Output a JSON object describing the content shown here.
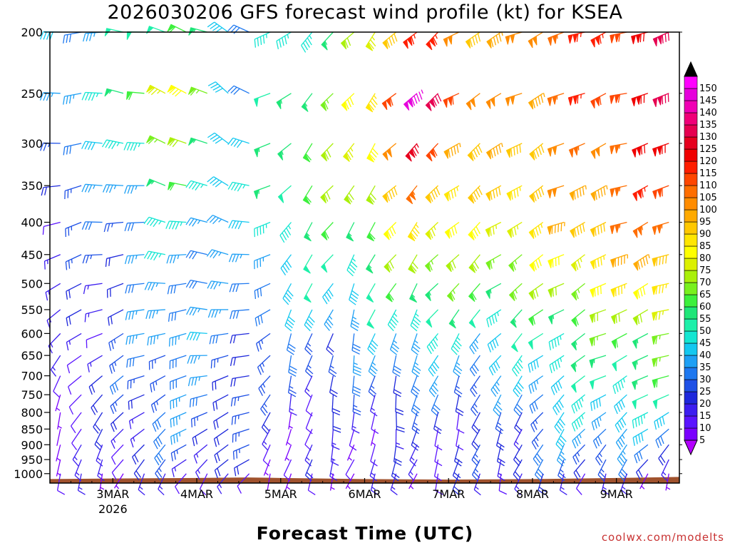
{
  "chart_data": {
    "type": "wind-barb-profile",
    "title": "2026030206 GFS forecast wind profile (kt) for KSEA",
    "xlabel": "Forecast Time (UTC)",
    "ylabel": "",
    "y_axis": {
      "ticks": [
        200,
        250,
        300,
        350,
        400,
        450,
        500,
        550,
        600,
        650,
        700,
        750,
        800,
        850,
        900,
        950,
        1000
      ],
      "range": [
        200,
        1035
      ],
      "scale": "log-pressure-inverted",
      "units": "hPa"
    },
    "x_axis": {
      "tick_labels": [
        "3MAR",
        "4MAR",
        "5MAR",
        "6MAR",
        "7MAR",
        "8MAR",
        "9MAR"
      ],
      "tick_days": [
        3,
        4,
        5,
        6,
        7,
        8,
        9
      ],
      "sublabel": "2026",
      "range_days": [
        2.25,
        9.75
      ],
      "step_hours": 6
    },
    "colorbar": {
      "levels": [
        5,
        10,
        15,
        20,
        25,
        30,
        35,
        40,
        45,
        50,
        55,
        60,
        65,
        70,
        75,
        80,
        85,
        90,
        95,
        100,
        105,
        110,
        115,
        120,
        125,
        130,
        135,
        140,
        145,
        150
      ],
      "colors": [
        "#7a00ff",
        "#5a14ff",
        "#3c1ef0",
        "#1e28dc",
        "#1e50e6",
        "#1e78f0",
        "#1ea0f5",
        "#14c8f0",
        "#14e6d2",
        "#1ef0aa",
        "#1ee678",
        "#3cf03c",
        "#78f01e",
        "#aaf00a",
        "#dcf000",
        "#ffff00",
        "#ffe600",
        "#ffc800",
        "#ffaa00",
        "#ff8c00",
        "#ff6e00",
        "#ff4600",
        "#ff1e00",
        "#f00000",
        "#e6001e",
        "#e60050",
        "#f00078",
        "#f000b4",
        "#e600dc",
        "#ff00ff"
      ],
      "cap_top_color": "#000000",
      "cap_bottom_color": "#b400ff"
    },
    "levels_hpa": [
      200,
      250,
      300,
      350,
      400,
      450,
      500,
      550,
      600,
      650,
      700,
      750,
      800,
      850,
      900,
      950,
      1000
    ],
    "wind_keyframes": {
      "days": [
        2.25,
        3.0,
        3.75,
        4.6,
        5.0,
        6.0,
        6.6,
        7.5,
        8.5,
        9.75
      ],
      "speed_kt": {
        "200": [
          35,
          40,
          60,
          35,
          40,
          65,
          115,
          90,
          110,
          125
        ],
        "250": [
          35,
          45,
          85,
          30,
          50,
          75,
          140,
          95,
          105,
          125
        ],
        "300": [
          30,
          35,
          70,
          35,
          55,
          75,
          120,
          85,
          100,
          120
        ],
        "350": [
          25,
          30,
          55,
          40,
          55,
          70,
          100,
          85,
          95,
          115
        ],
        "400": [
          15,
          25,
          45,
          35,
          50,
          60,
          85,
          75,
          90,
          110
        ],
        "450": [
          15,
          25,
          40,
          30,
          45,
          50,
          70,
          65,
          80,
          100
        ],
        "500": [
          10,
          20,
          35,
          30,
          40,
          45,
          60,
          60,
          70,
          90
        ],
        "550": [
          10,
          20,
          35,
          30,
          35,
          40,
          50,
          50,
          60,
          80
        ],
        "600": [
          8,
          20,
          40,
          25,
          25,
          30,
          40,
          40,
          55,
          65
        ],
        "650": [
          8,
          20,
          35,
          25,
          25,
          30,
          35,
          35,
          50,
          60
        ],
        "700": [
          8,
          20,
          30,
          25,
          20,
          25,
          30,
          30,
          45,
          55
        ],
        "750": [
          6,
          20,
          30,
          25,
          15,
          20,
          25,
          25,
          40,
          45
        ],
        "800": [
          6,
          15,
          30,
          25,
          10,
          15,
          20,
          15,
          40,
          40
        ],
        "850": [
          6,
          15,
          30,
          20,
          10,
          10,
          15,
          15,
          35,
          35
        ],
        "900": [
          6,
          15,
          25,
          20,
          10,
          10,
          15,
          20,
          30,
          25
        ],
        "950": [
          6,
          15,
          20,
          15,
          10,
          15,
          15,
          20,
          25,
          20
        ],
        "1000": [
          5,
          10,
          15,
          10,
          5,
          10,
          10,
          15,
          15,
          10
        ]
      },
      "dir_deg": {
        "200": [
          260,
          270,
          290,
          300,
          230,
          220,
          230,
          240,
          250,
          255
        ],
        "250": [
          260,
          275,
          295,
          305,
          230,
          220,
          230,
          240,
          250,
          255
        ],
        "300": [
          260,
          275,
          290,
          300,
          225,
          215,
          225,
          235,
          245,
          255
        ],
        "350": [
          255,
          270,
          285,
          295,
          225,
          215,
          225,
          235,
          245,
          250
        ],
        "400": [
          250,
          265,
          280,
          290,
          220,
          210,
          220,
          235,
          245,
          250
        ],
        "450": [
          245,
          260,
          275,
          285,
          220,
          210,
          220,
          230,
          240,
          250
        ],
        "500": [
          240,
          255,
          270,
          280,
          215,
          205,
          215,
          230,
          240,
          250
        ],
        "550": [
          235,
          250,
          265,
          275,
          210,
          200,
          210,
          225,
          240,
          250
        ],
        "600": [
          230,
          245,
          260,
          270,
          205,
          195,
          205,
          220,
          240,
          250
        ],
        "650": [
          220,
          240,
          255,
          265,
          200,
          190,
          200,
          215,
          240,
          250
        ],
        "700": [
          210,
          235,
          250,
          260,
          200,
          190,
          200,
          210,
          235,
          250
        ],
        "750": [
          200,
          230,
          245,
          255,
          195,
          185,
          195,
          205,
          230,
          245
        ],
        "800": [
          190,
          225,
          240,
          250,
          195,
          185,
          190,
          200,
          225,
          240
        ],
        "850": [
          190,
          220,
          235,
          245,
          200,
          190,
          190,
          200,
          220,
          235
        ],
        "900": [
          190,
          215,
          230,
          240,
          200,
          195,
          195,
          200,
          215,
          225
        ],
        "950": [
          185,
          210,
          225,
          235,
          200,
          200,
          200,
          200,
          210,
          215
        ],
        "1000": [
          180,
          200,
          210,
          220,
          190,
          200,
          200,
          195,
          200,
          200
        ]
      }
    },
    "ground": {
      "color": "#a0522d",
      "top_hpa": [
        1020,
        1018,
        1016,
        1014,
        1016,
        1020,
        1022,
        1020,
        1016,
        1012
      ],
      "days": [
        2.25,
        3.0,
        4.0,
        4.6,
        5.0,
        6.0,
        7.0,
        8.0,
        9.0,
        9.75
      ]
    }
  },
  "credit": "coolwx.com/modelts"
}
